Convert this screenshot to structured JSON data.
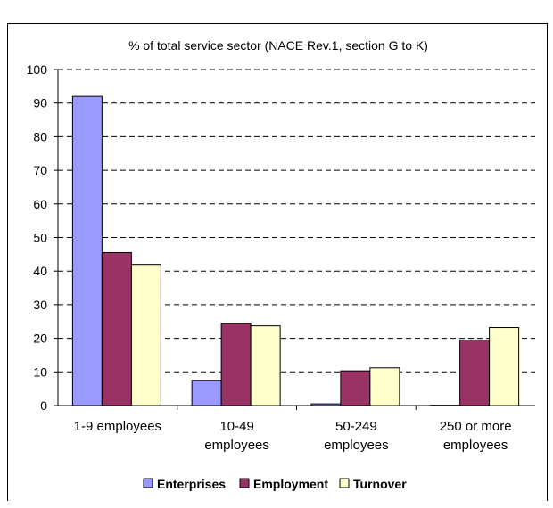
{
  "chart_data": {
    "type": "bar",
    "title": "% of total service sector (NACE Rev.1, section G to K)",
    "xlabel": "",
    "ylabel": "",
    "ylim": [
      0,
      100
    ],
    "yticks": [
      0,
      10,
      20,
      30,
      40,
      50,
      60,
      70,
      80,
      90,
      100
    ],
    "categories": [
      [
        "1-9 employees"
      ],
      [
        "10-49",
        "employees"
      ],
      [
        "50-249",
        "employees"
      ],
      [
        "250 or more",
        "employees"
      ]
    ],
    "series": [
      {
        "name": "Enterprises",
        "color": "#9999ff",
        "values": [
          92,
          7.5,
          0.5,
          0.1
        ]
      },
      {
        "name": "Employment",
        "color": "#993366",
        "values": [
          45.5,
          24.5,
          10.3,
          19.5
        ]
      },
      {
        "name": "Turnover",
        "color": "#ffffcc",
        "values": [
          42,
          23.7,
          11.2,
          23.2
        ]
      }
    ],
    "grid": true,
    "legend_position": "bottom"
  }
}
